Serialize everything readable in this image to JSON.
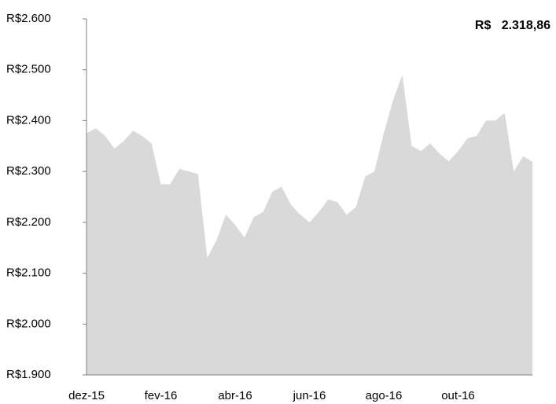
{
  "chart_data": {
    "type": "area",
    "annotation": "R$   2.318,86",
    "color": "#d9d9d9",
    "categories": [
      "dez-15",
      null,
      null,
      null,
      null,
      null,
      null,
      null,
      "fev-16",
      null,
      null,
      null,
      null,
      null,
      null,
      null,
      "abr-16",
      null,
      null,
      null,
      null,
      null,
      null,
      null,
      "jun-16",
      null,
      null,
      null,
      null,
      null,
      null,
      null,
      "ago-16",
      null,
      null,
      null,
      null,
      null,
      null,
      null,
      "out-16",
      null,
      null,
      null,
      null,
      null,
      null,
      null,
      null
    ],
    "values": [
      2375,
      2385,
      2370,
      2345,
      2360,
      2380,
      2370,
      2355,
      2275,
      2275,
      2305,
      2300,
      2295,
      2130,
      2165,
      2215,
      2195,
      2170,
      2210,
      2220,
      2260,
      2270,
      2235,
      2215,
      2200,
      2220,
      2245,
      2240,
      2215,
      2230,
      2290,
      2300,
      2375,
      2440,
      2490,
      2350,
      2340,
      2355,
      2335,
      2320,
      2340,
      2365,
      2370,
      2400,
      2400,
      2415,
      2300,
      2330,
      2319
    ],
    "ylim": [
      1900,
      2600
    ],
    "yticks": [
      {
        "value": 1900,
        "label": "R$1.900"
      },
      {
        "value": 2000,
        "label": "R$2.000"
      },
      {
        "value": 2100,
        "label": "R$2.100"
      },
      {
        "value": 2200,
        "label": "R$2.200"
      },
      {
        "value": 2300,
        "label": "R$2.300"
      },
      {
        "value": 2400,
        "label": "R$2.400"
      },
      {
        "value": 2500,
        "label": "R$2.500"
      },
      {
        "value": 2600,
        "label": "R$2.600"
      }
    ]
  }
}
